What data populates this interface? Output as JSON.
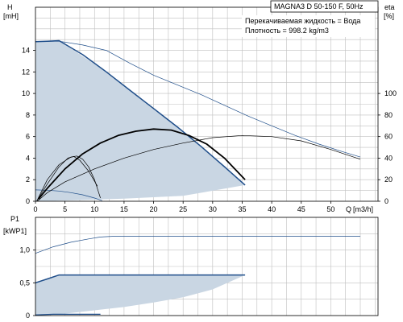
{
  "chart_data": [
    {
      "type": "line",
      "title": "MAGNA3 D 50-150 F, 50Hz",
      "info_lines": [
        "Перекачиваемая жидкость = Вода",
        "Плотность = 998.2 kg/m3"
      ],
      "ylabel": "H",
      "yunit": "[mH]",
      "ylabel_right": "eta",
      "yunit_right": "[%]",
      "xlabel": "Q",
      "xunit": "[m3/h]",
      "xlim": [
        0,
        58
      ],
      "ylim": [
        0,
        18
      ],
      "ylim_right": [
        0,
        180
      ],
      "x_ticks": [
        0,
        5,
        10,
        15,
        20,
        25,
        30,
        35,
        40,
        45,
        50
      ],
      "y_ticks": [
        0,
        2,
        4,
        6,
        8,
        10,
        12,
        14
      ],
      "y_ticks_right": [
        0,
        20,
        40,
        60,
        80,
        100
      ],
      "grid": true,
      "shaded_area": {
        "x": [
          0,
          0,
          1,
          2,
          3,
          4,
          12,
          20,
          25,
          30,
          32,
          34,
          35.5,
          25,
          15,
          10,
          5,
          2,
          0
        ],
        "y": [
          0,
          14.8,
          14.8,
          14.8,
          14.85,
          14.9,
          12,
          8.5,
          6.5,
          4.2,
          3.3,
          2.3,
          1.5,
          0.5,
          0.25,
          0.15,
          0.07,
          0.02,
          0
        ]
      },
      "series": [
        {
          "name": "",
          "axis": "left",
          "stroke": "#1f4e8a",
          "width": 1.5,
          "x": [
            0,
            2,
            4,
            8,
            12,
            16,
            20,
            24,
            28,
            32,
            35.5
          ],
          "y": [
            14.8,
            14.85,
            14.9,
            13.6,
            12.0,
            10.3,
            8.6,
            6.9,
            5.1,
            3.2,
            1.5
          ]
        },
        {
          "name": "",
          "axis": "left",
          "stroke": "#1f4e8a",
          "width": 0.7,
          "x": [
            0,
            4,
            8,
            12,
            16,
            20,
            24,
            28,
            32,
            36,
            40,
            44,
            48,
            52,
            55
          ],
          "y": [
            14.8,
            14.85,
            14.5,
            14.0,
            12.8,
            11.7,
            10.8,
            9.9,
            8.9,
            7.9,
            7.0,
            6.1,
            5.3,
            4.6,
            4.1
          ]
        },
        {
          "name": "",
          "axis": "left",
          "stroke": "#1f4e8a",
          "width": 0.7,
          "x": [
            0,
            2,
            4,
            6,
            8,
            10,
            11.3
          ],
          "y": [
            1.05,
            1.02,
            0.95,
            0.8,
            0.6,
            0.3,
            0.05
          ]
        },
        {
          "name": "",
          "axis": "right",
          "stroke": "#000000",
          "width": 1.8,
          "x": [
            0.5,
            2,
            5,
            8,
            11,
            14,
            17,
            20,
            23,
            26,
            29,
            32,
            35.5
          ],
          "y": [
            2,
            12,
            30,
            44,
            54,
            61,
            65,
            67,
            66,
            61,
            53,
            40,
            20
          ]
        },
        {
          "name": "",
          "axis": "right",
          "stroke": "#000000",
          "width": 0.7,
          "x": [
            0.3,
            2,
            5,
            10,
            15,
            20,
            25,
            30,
            35,
            40,
            45,
            50,
            55
          ],
          "y": [
            0,
            8,
            18,
            30,
            40,
            48,
            54,
            59,
            61,
            60,
            56,
            48,
            39
          ]
        },
        {
          "name": "",
          "axis": "right",
          "stroke": "#000000",
          "width": 0.7,
          "x": [
            0.2,
            2,
            4,
            6,
            7,
            8,
            9,
            10,
            11
          ],
          "y": [
            0,
            20,
            34,
            41,
            42,
            39,
            32,
            20,
            3
          ]
        },
        {
          "name": "",
          "axis": "right",
          "stroke": "#000000",
          "width": 0.7,
          "x": [
            0.2,
            2,
            4,
            5.5,
            6.5,
            7.5,
            9,
            10.5
          ],
          "y": [
            0,
            16,
            32,
            40,
            41.5,
            38,
            28,
            14
          ]
        }
      ]
    },
    {
      "type": "line",
      "ylabel": "P1",
      "yunit": "[kWP1]",
      "xlim": [
        0,
        58
      ],
      "ylim": [
        0,
        1.5
      ],
      "y_ticks": [
        0,
        0.5,
        1.0
      ],
      "y_tick_labels": [
        "0",
        "0,5",
        "1,0"
      ],
      "x_ticks": [
        0,
        5,
        10,
        15,
        20,
        25,
        30,
        35,
        40,
        45,
        50
      ],
      "grid": true,
      "shaded_area": {
        "x": [
          0,
          0,
          2,
          4,
          8,
          12,
          20,
          25,
          30,
          32,
          34,
          35.5,
          30,
          25,
          20,
          15,
          10,
          5,
          0
        ],
        "y": [
          0,
          0.5,
          0.56,
          0.62,
          0.62,
          0.62,
          0.62,
          0.62,
          0.62,
          0.62,
          0.62,
          0.62,
          0.4,
          0.28,
          0.2,
          0.13,
          0.08,
          0.03,
          0
        ]
      },
      "series": [
        {
          "name": "",
          "stroke": "#1f4e8a",
          "width": 1.5,
          "x": [
            0,
            2,
            4,
            8,
            12,
            20,
            28,
            35.5
          ],
          "y": [
            0.5,
            0.56,
            0.62,
            0.62,
            0.62,
            0.62,
            0.62,
            0.62
          ]
        },
        {
          "name": "",
          "stroke": "#1f4e8a",
          "width": 0.7,
          "x": [
            0,
            3,
            6,
            9,
            11,
            13,
            20,
            30,
            40,
            50,
            55
          ],
          "y": [
            0.95,
            1.05,
            1.12,
            1.17,
            1.2,
            1.21,
            1.21,
            1.21,
            1.21,
            1.21,
            1.21
          ]
        },
        {
          "name": "",
          "stroke": "#1f4e8a",
          "width": 1.2,
          "x": [
            0,
            3,
            6,
            9,
            11
          ],
          "y": [
            0.01,
            0.02,
            0.02,
            0.02,
            0.02
          ]
        }
      ]
    }
  ]
}
